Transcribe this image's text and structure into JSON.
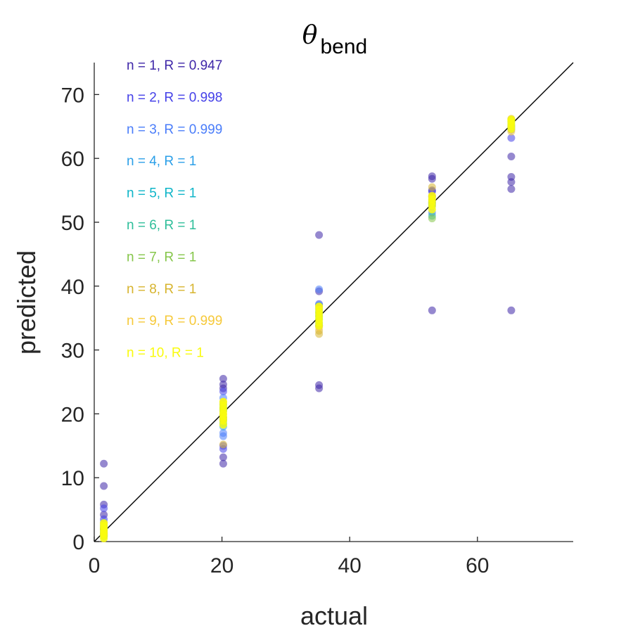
{
  "chart_data": {
    "type": "scatter",
    "title": {
      "symbol": "θ",
      "subscript": "bend"
    },
    "xlabel": "actual",
    "ylabel": "predicted",
    "xlim": [
      0,
      75
    ],
    "ylim": [
      0,
      75
    ],
    "xticks": [
      0,
      20,
      40,
      60
    ],
    "yticks": [
      0,
      10,
      20,
      30,
      40,
      50,
      60,
      70
    ],
    "reference_line": {
      "from": [
        0,
        0
      ],
      "to": [
        75,
        75
      ],
      "color": "#000000"
    },
    "grid": false,
    "legend_placement": "top-left (text annotations)",
    "series": [
      {
        "name": "n = 1, R = 0.947",
        "color": "#3e26a8",
        "x": [
          1.5,
          1.5,
          1.5,
          1.5,
          1.5,
          20.2,
          20.2,
          20.2,
          20.2,
          20.2,
          35.2,
          35.2,
          35.2,
          35.2,
          52.9,
          52.9,
          52.9,
          52.9,
          52.9,
          65.3,
          65.3,
          65.3,
          65.3,
          65.3
        ],
        "y": [
          12.2,
          8.7,
          5.8,
          4.2,
          2.0,
          25.5,
          24.6,
          24.0,
          13.2,
          12.2,
          48.0,
          39.2,
          24.5,
          24.0,
          57.2,
          56.8,
          55.0,
          54.0,
          36.2,
          60.3,
          57.1,
          56.3,
          55.2,
          36.2
        ]
      },
      {
        "name": "n = 2, R = 0.998",
        "color": "#4541e8",
        "x": [
          1.5,
          1.5,
          1.5,
          20.2,
          20.2,
          20.2,
          35.2,
          35.2,
          52.9,
          52.9,
          65.3,
          65.3
        ],
        "y": [
          5.2,
          3.5,
          1.2,
          23.5,
          15.0,
          14.5,
          37.2,
          33.8,
          54.8,
          53.0,
          64.5,
          63.2
        ]
      },
      {
        "name": "n = 3, R = 0.999",
        "color": "#4a7dfa",
        "x": [
          1.5,
          1.5,
          20.2,
          20.2,
          20.2,
          35.2,
          35.2,
          52.9,
          52.9,
          65.3
        ],
        "y": [
          3.0,
          1.5,
          22.5,
          17.0,
          16.5,
          39.5,
          36.5,
          52.5,
          51.5,
          65.0
        ]
      },
      {
        "name": "n = 4, R = 1",
        "color": "#2b9fe8",
        "x": [
          1.5,
          1.5,
          20.2,
          20.2,
          35.2,
          35.2,
          52.9,
          65.3
        ],
        "y": [
          2.6,
          0.9,
          18.0,
          21.5,
          35.5,
          37.0,
          53.2,
          64.8
        ]
      },
      {
        "name": "n = 5, R = 1",
        "color": "#0fb5c8",
        "x": [
          1.5,
          1.5,
          20.2,
          20.2,
          35.2,
          35.2,
          52.9,
          65.3
        ],
        "y": [
          2.2,
          1.0,
          18.5,
          20.5,
          34.8,
          36.0,
          52.8,
          65.2
        ]
      },
      {
        "name": "n = 6, R = 1",
        "color": "#2ebe9a",
        "x": [
          1.5,
          1.5,
          20.2,
          20.2,
          35.2,
          35.2,
          52.9,
          65.3
        ],
        "y": [
          1.8,
          0.8,
          19.0,
          21.0,
          35.2,
          34.2,
          51.0,
          65.7
        ]
      },
      {
        "name": "n = 7, R = 1",
        "color": "#85c64a",
        "x": [
          1.5,
          1.5,
          20.2,
          20.2,
          35.2,
          35.2,
          52.9,
          65.3
        ],
        "y": [
          2.4,
          1.2,
          19.5,
          20.8,
          33.8,
          35.8,
          50.6,
          66.0
        ]
      },
      {
        "name": "n = 8, R = 1",
        "color": "#d7b42e",
        "x": [
          1.5,
          1.5,
          20.2,
          20.2,
          35.2,
          35.2,
          52.9,
          52.9,
          65.3
        ],
        "y": [
          2.0,
          1.4,
          15.2,
          19.2,
          32.5,
          33.0,
          53.5,
          55.5,
          66.2
        ]
      },
      {
        "name": "n = 9, R = 0.999",
        "color": "#f6c93a",
        "x": [
          1.5,
          1.5,
          20.2,
          20.2,
          35.2,
          35.2,
          52.9,
          65.3
        ],
        "y": [
          2.8,
          1.1,
          20.0,
          21.8,
          33.5,
          36.8,
          54.2,
          64.2
        ]
      },
      {
        "name": "n = 10, R = 1",
        "color": "#f9fb0e",
        "x": [
          1.5,
          1.5,
          1.5,
          1.5,
          1.5,
          1.5,
          1.5,
          20.2,
          20.2,
          20.2,
          20.2,
          20.2,
          20.2,
          20.2,
          20.2,
          35.2,
          35.2,
          35.2,
          35.2,
          35.2,
          35.2,
          35.2,
          52.9,
          52.9,
          52.9,
          52.9,
          52.9,
          65.3,
          65.3,
          65.3,
          65.3,
          65.3
        ],
        "y": [
          0.5,
          0.9,
          1.3,
          1.7,
          2.1,
          2.5,
          2.9,
          18.3,
          18.9,
          19.4,
          19.9,
          20.4,
          20.9,
          21.4,
          21.9,
          33.8,
          34.3,
          34.8,
          35.3,
          35.8,
          36.3,
          36.8,
          52.0,
          52.6,
          53.1,
          53.6,
          54.1,
          64.6,
          65.0,
          65.4,
          65.8,
          66.1
        ]
      }
    ]
  }
}
